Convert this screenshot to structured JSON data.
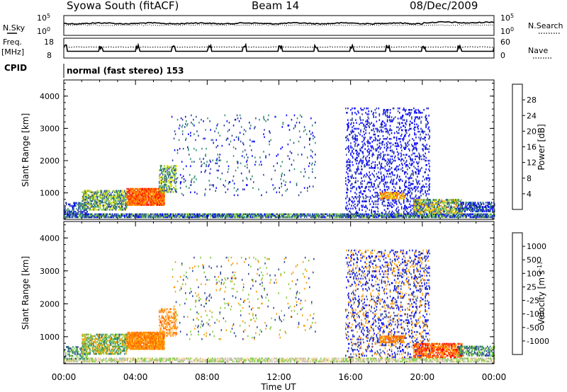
{
  "header": {
    "station": "Syowa South (fitACF)",
    "beam": "Beam 14",
    "date": "08/Dec/2009"
  },
  "strip_labels": {
    "nsky": "N.Sky",
    "nsearch": "N.Search",
    "freq": "Freq.",
    "freq_unit": "[MHz]",
    "nave": "Nave",
    "cpid": "CPID",
    "cpid_value": "normal (fast stereo) 153"
  },
  "strip_ticks": {
    "noise_left": [
      "10^5",
      "10^0"
    ],
    "noise_right": [
      "10^5",
      "10^0"
    ],
    "freq_left": [
      "18",
      "8"
    ],
    "freq_right": [
      "60",
      "0"
    ]
  },
  "chart_data": [
    {
      "type": "heatmap",
      "name": "power",
      "xlabel": "Time UT",
      "ylabel": "Slant Range [km]",
      "xlim": [
        0,
        24
      ],
      "ylim": [
        180,
        4500
      ],
      "x_ticks": [
        "00:00",
        "04:00",
        "08:00",
        "12:00",
        "16:00",
        "20:00",
        "00:00"
      ],
      "y_ticks": [
        1000,
        2000,
        3000,
        4000
      ],
      "colorbar_label": "Power [dB]",
      "colorbar_ticks": [
        "28",
        "24",
        "20",
        "16",
        "12",
        "8",
        "4"
      ],
      "colorbar_colors": [
        "#0000ff",
        "#2a3f96",
        "#2e8a70",
        "#7fcc3a",
        "#e4e000",
        "#ff9a00",
        "#ff6000",
        "#ff0000"
      ],
      "regions": [
        {
          "t": [
            0.0,
            24.0
          ],
          "r": [
            220,
            320
          ],
          "density": 0.75,
          "levels": [
            0,
            1,
            2,
            3
          ]
        },
        {
          "t": [
            0.0,
            1.3
          ],
          "r": [
            300,
            700
          ],
          "density": 0.35,
          "levels": [
            0,
            1,
            2
          ]
        },
        {
          "t": [
            1.0,
            3.5
          ],
          "r": [
            450,
            1050
          ],
          "density": 0.55,
          "levels": [
            1,
            2,
            3,
            4
          ]
        },
        {
          "t": [
            3.5,
            5.6
          ],
          "r": [
            600,
            1100
          ],
          "density": 0.85,
          "levels": [
            5,
            6,
            7,
            6
          ]
        },
        {
          "t": [
            5.3,
            6.3
          ],
          "r": [
            1000,
            1850
          ],
          "density": 0.45,
          "levels": [
            1,
            2,
            3,
            4
          ]
        },
        {
          "t": [
            6.0,
            14.0
          ],
          "r": [
            900,
            3400
          ],
          "density": 0.03,
          "levels": [
            0,
            1,
            2
          ]
        },
        {
          "t": [
            15.7,
            20.4
          ],
          "r": [
            350,
            3600
          ],
          "density": 0.16,
          "levels": [
            0,
            0,
            1
          ]
        },
        {
          "t": [
            17.6,
            19.0
          ],
          "r": [
            800,
            1000
          ],
          "density": 0.6,
          "levels": [
            5,
            6,
            4
          ]
        },
        {
          "t": [
            19.5,
            22.2
          ],
          "r": [
            350,
            800
          ],
          "density": 0.6,
          "levels": [
            1,
            2,
            3,
            4,
            5
          ]
        },
        {
          "t": [
            22.0,
            24.0
          ],
          "r": [
            400,
            700
          ],
          "density": 0.5,
          "levels": [
            0,
            1,
            2
          ]
        }
      ]
    },
    {
      "type": "heatmap",
      "name": "velocity",
      "xlabel": "Time UT",
      "ylabel": "Slant Range [km]",
      "xlim": [
        0,
        24
      ],
      "ylim": [
        180,
        4500
      ],
      "x_ticks": [
        "00:00",
        "04:00",
        "08:00",
        "12:00",
        "16:00",
        "20:00",
        "00:00"
      ],
      "y_ticks": [
        1000,
        2000,
        3000,
        4000
      ],
      "colorbar_label": "Velocity [m s^-1]",
      "colorbar_ticks": [
        "1000",
        "500",
        "100",
        "25",
        "-25",
        "-100",
        "-500",
        "-1000"
      ],
      "colorbar_colors": [
        "#ff0000",
        "#ff6000",
        "#ff9a00",
        "#ffd8a0",
        "#c0c0c0",
        "#7fcc3a",
        "#2e8a70",
        "#2a3f96",
        "#0000ff"
      ],
      "regions": [
        {
          "t": [
            0.0,
            24.0
          ],
          "r": [
            220,
            320
          ],
          "density": 0.6,
          "levels": [
            4,
            3,
            5
          ]
        },
        {
          "t": [
            0.0,
            1.3
          ],
          "r": [
            300,
            700
          ],
          "density": 0.35,
          "levels": [
            6,
            7,
            5
          ]
        },
        {
          "t": [
            1.0,
            3.5
          ],
          "r": [
            450,
            1050
          ],
          "density": 0.55,
          "levels": [
            5,
            6,
            2
          ]
        },
        {
          "t": [
            3.5,
            5.6
          ],
          "r": [
            600,
            1100
          ],
          "density": 0.85,
          "levels": [
            2,
            1,
            2
          ]
        },
        {
          "t": [
            5.3,
            6.3
          ],
          "r": [
            1000,
            1850
          ],
          "density": 0.45,
          "levels": [
            2,
            1,
            3
          ]
        },
        {
          "t": [
            6.0,
            14.0
          ],
          "r": [
            900,
            3400
          ],
          "density": 0.03,
          "levels": [
            2,
            5,
            7
          ]
        },
        {
          "t": [
            15.7,
            20.4
          ],
          "r": [
            350,
            3600
          ],
          "density": 0.16,
          "levels": [
            7,
            8,
            2
          ]
        },
        {
          "t": [
            17.6,
            19.0
          ],
          "r": [
            800,
            1000
          ],
          "density": 0.6,
          "levels": [
            2,
            1
          ]
        },
        {
          "t": [
            19.5,
            22.2
          ],
          "r": [
            350,
            800
          ],
          "density": 0.6,
          "levels": [
            1,
            2,
            0
          ]
        },
        {
          "t": [
            22.0,
            24.0
          ],
          "r": [
            400,
            700
          ],
          "density": 0.5,
          "levels": [
            5,
            6,
            7
          ]
        }
      ]
    }
  ]
}
